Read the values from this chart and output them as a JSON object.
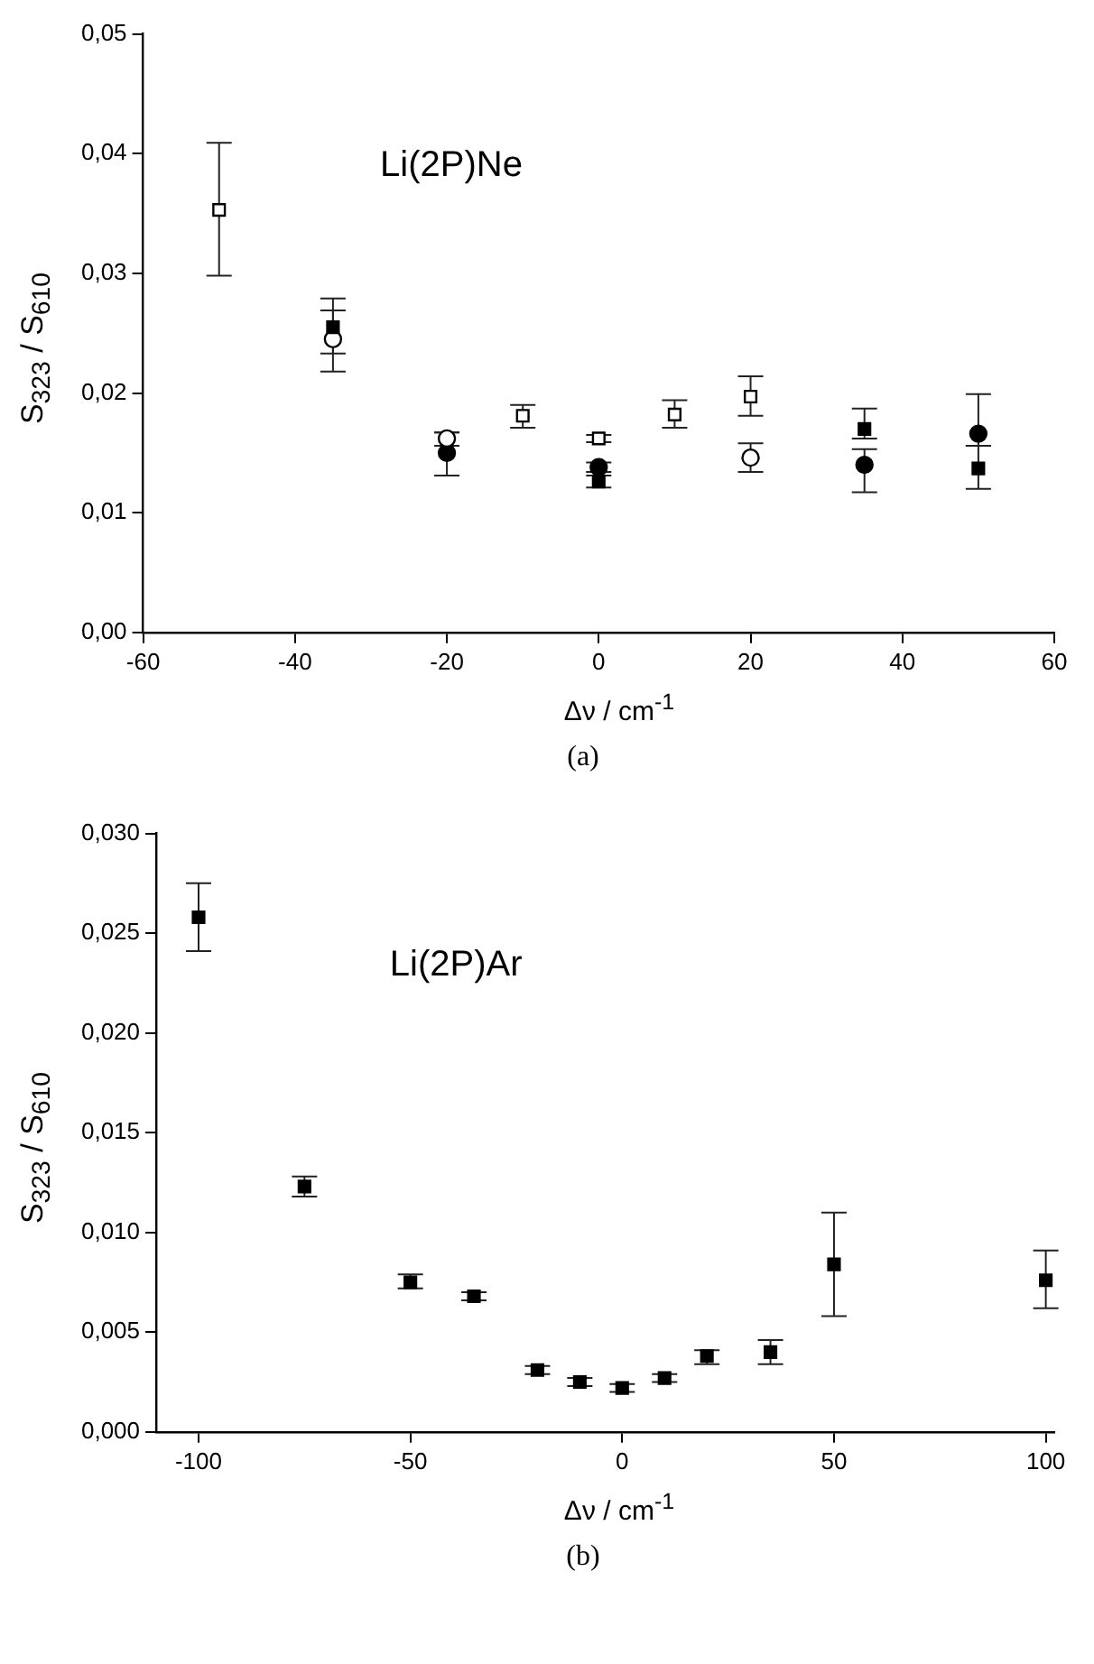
{
  "chart_data": [
    {
      "type": "scatter",
      "xlabel": "Δν / cm$^{-1}$",
      "ylabel": "S$_{323}$ / S$_{610}$",
      "annotations": [
        "Li(2P)Ne",
        "(a)"
      ],
      "xlim": [
        -60,
        60
      ],
      "xticks": [
        -60,
        -40,
        -20,
        0,
        20,
        40,
        60
      ],
      "ylim": [
        0,
        0.05
      ],
      "yticks": [
        {
          "value": 0,
          "label": "0,00"
        },
        {
          "value": 0.01,
          "label": "0,01"
        },
        {
          "value": 0.02,
          "label": "0,02"
        },
        {
          "value": 0.03,
          "label": "0,03"
        },
        {
          "value": 0.04,
          "label": "0,04"
        },
        {
          "value": 0.05,
          "label": "0,05"
        }
      ],
      "series": [
        {
          "color": "#ffffff",
          "marker": "square",
          "x": [
            -50,
            -10,
            0,
            10,
            20
          ],
          "values": [
            0.0353,
            0.0181,
            0.0162,
            0.0182,
            0.0197
          ],
          "errors": [
            [
              0.0298,
              0.0409
            ],
            [
              0.0171,
              0.019
            ],
            [
              0.0159,
              0.0165
            ],
            [
              0.0171,
              0.0194
            ],
            [
              0.0181,
              0.0214
            ]
          ]
        },
        {
          "color": "#000000",
          "marker": "square",
          "x": [
            -35,
            0,
            35,
            50
          ],
          "values": [
            0.0255,
            0.0126,
            0.017,
            0.0137
          ],
          "errors": [
            [
              0.0233,
              0.0279
            ],
            [
              0.0121,
              0.0131
            ],
            [
              0.0162,
              0.0187
            ],
            [
              0.012,
              0.0156
            ]
          ]
        },
        {
          "color": "#ffffff",
          "marker": "circle",
          "x": [
            -35,
            -20,
            20
          ],
          "values": [
            0.0245,
            0.0162,
            0.0146
          ],
          "errors": [
            [
              0.0218,
              0.0269
            ],
            [
              0.0156,
              0.0167
            ],
            [
              0.0134,
              0.0158
            ]
          ]
        },
        {
          "color": "#000000",
          "marker": "circle",
          "x": [
            -20,
            0,
            35,
            50
          ],
          "values": [
            0.015,
            0.0138,
            0.014,
            0.0166
          ],
          "errors": [
            [
              0.0131,
              0.0167
            ],
            [
              0.0134,
              0.0142
            ],
            [
              0.0117,
              0.0153
            ],
            [
              0.0156,
              0.0199
            ]
          ]
        }
      ]
    },
    {
      "type": "scatter",
      "xlabel": "Δν / cm$^{-1}$",
      "ylabel": "S$_{323}$ / S$_{610}$",
      "annotations": [
        "Li(2P)Ar",
        "(b)"
      ],
      "xlim": [
        -110,
        102
      ],
      "xticks": [
        -100,
        -50,
        0,
        50,
        100
      ],
      "ylim": [
        0,
        0.03
      ],
      "yticks": [
        {
          "value": 0,
          "label": "0,000"
        },
        {
          "value": 0.005,
          "label": "0,005"
        },
        {
          "value": 0.01,
          "label": "0,010"
        },
        {
          "value": 0.015,
          "label": "0,015"
        },
        {
          "value": 0.02,
          "label": "0,020"
        },
        {
          "value": 0.025,
          "label": "0,025"
        },
        {
          "value": 0.03,
          "label": "0,030"
        }
      ],
      "series": [
        {
          "color": "#000000",
          "marker": "square",
          "x": [
            -100,
            -75,
            -50,
            -35,
            -20,
            -10,
            0,
            10,
            20,
            35,
            50,
            100
          ],
          "values": [
            0.0258,
            0.0123,
            0.0075,
            0.0068,
            0.0031,
            0.0025,
            0.0022,
            0.0027,
            0.0038,
            0.004,
            0.0084,
            0.0076
          ],
          "errors": [
            [
              0.0241,
              0.0275
            ],
            [
              0.0118,
              0.0128
            ],
            [
              0.0072,
              0.0079
            ],
            [
              0.0066,
              0.007
            ],
            [
              0.0029,
              0.0033
            ],
            [
              0.0023,
              0.0027
            ],
            [
              0.002,
              0.0024
            ],
            [
              0.0025,
              0.0029
            ],
            [
              0.0034,
              0.0041
            ],
            [
              0.0034,
              0.0046
            ],
            [
              0.0058,
              0.011
            ],
            [
              0.0062,
              0.0091
            ]
          ]
        }
      ]
    }
  ]
}
